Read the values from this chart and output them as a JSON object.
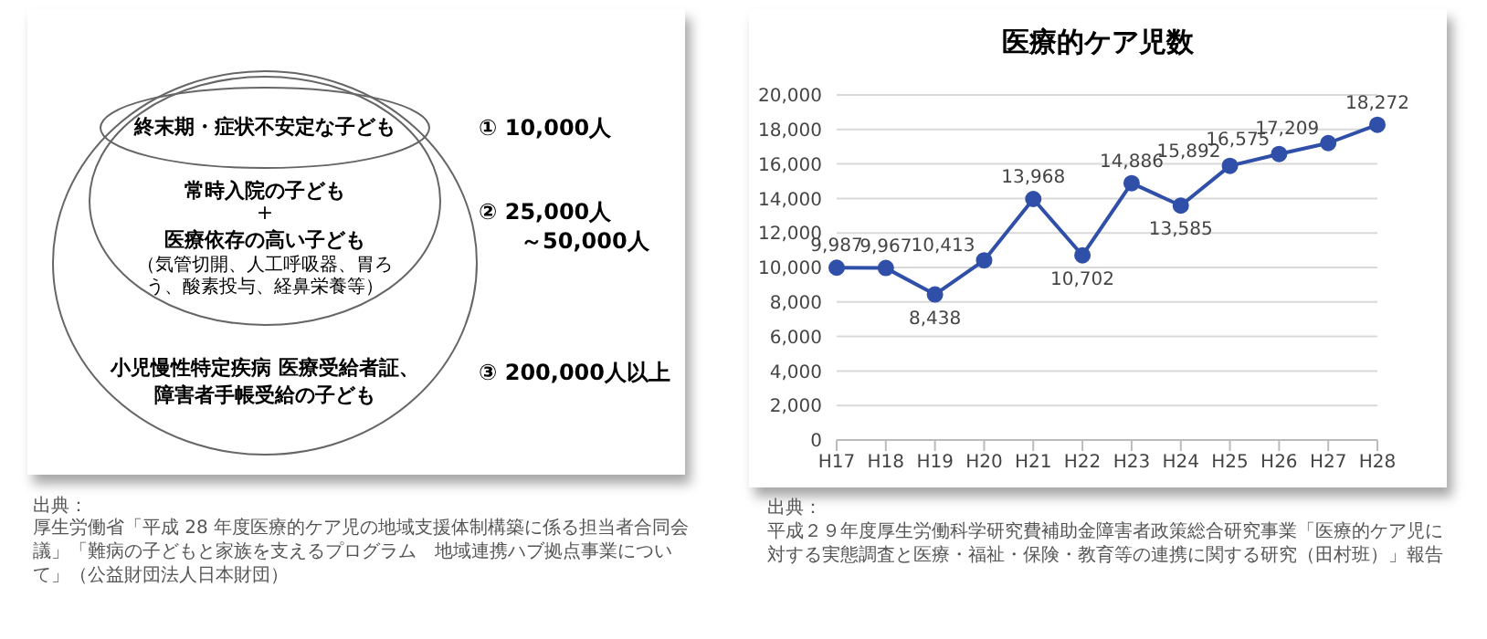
{
  "chart_data": [
    {
      "type": "other",
      "annotations": [
        "終末期・症状不安定な子ども",
        "① 10,000人",
        "常時入院の子ども",
        "+",
        "医療依存の高い子ども",
        "（気管切開、人工呼吸器、胃ろう、酸素投与、経鼻栄養等）",
        "② 25,000人",
        "～50,000人",
        "小児慢性特定疾病 医療受給者証、",
        "障害者手帳受給の子ども",
        "③ 200,000人以上",
        "出典：",
        "厚生労働省「平成 28 年度医療的ケア児の地域支援体制構築に係る担当者合同会議」「難病の子どもと家族を支えるプログラム　地域連携ハブ拠点事業について」（公益財団法人日本財団）"
      ]
    },
    {
      "type": "line",
      "title": "医療的ケア児数",
      "categories": [
        "H17",
        "H18",
        "H19",
        "H20",
        "H21",
        "H22",
        "H23",
        "H24",
        "H25",
        "H26",
        "H27",
        "H28"
      ],
      "series": [
        {
          "color": "#2f4fa8",
          "values": [
            9987,
            9967,
            8438,
            10413,
            13968,
            10702,
            14886,
            13585,
            15892,
            16575,
            17209,
            18272
          ],
          "value_labels": [
            "9,987",
            "9,967",
            "8,438",
            "10,413",
            "13,968",
            "10,702",
            "14,886",
            "13,585",
            "15,892",
            "16,575",
            "17,209",
            "18,272"
          ]
        }
      ],
      "ylim": [
        0,
        20000
      ],
      "yticks": [
        0,
        {
          "value": 2000,
          "label": "2,000"
        },
        {
          "value": 4000,
          "label": "4,000"
        },
        {
          "value": 6000,
          "label": "6,000"
        },
        {
          "value": 8000,
          "label": "8,000"
        },
        {
          "value": 10000,
          "label": "10,000"
        },
        {
          "value": 12000,
          "label": "12,000"
        },
        {
          "value": 14000,
          "label": "14,000"
        },
        {
          "value": 16000,
          "label": "16,000"
        },
        {
          "value": 18000,
          "label": "18,000"
        },
        {
          "value": 20000,
          "label": "20,000"
        }
      ],
      "grid": "y",
      "marker": "circle",
      "annotations": [
        "出典：",
        "平成２９年度厚生労働科学研究費補助金障害者政策総合研究事業「医療的ケア児に対する実態調査と医療・福祉・保険・教育等の連携に関する研究（田村班）」報告"
      ]
    }
  ]
}
